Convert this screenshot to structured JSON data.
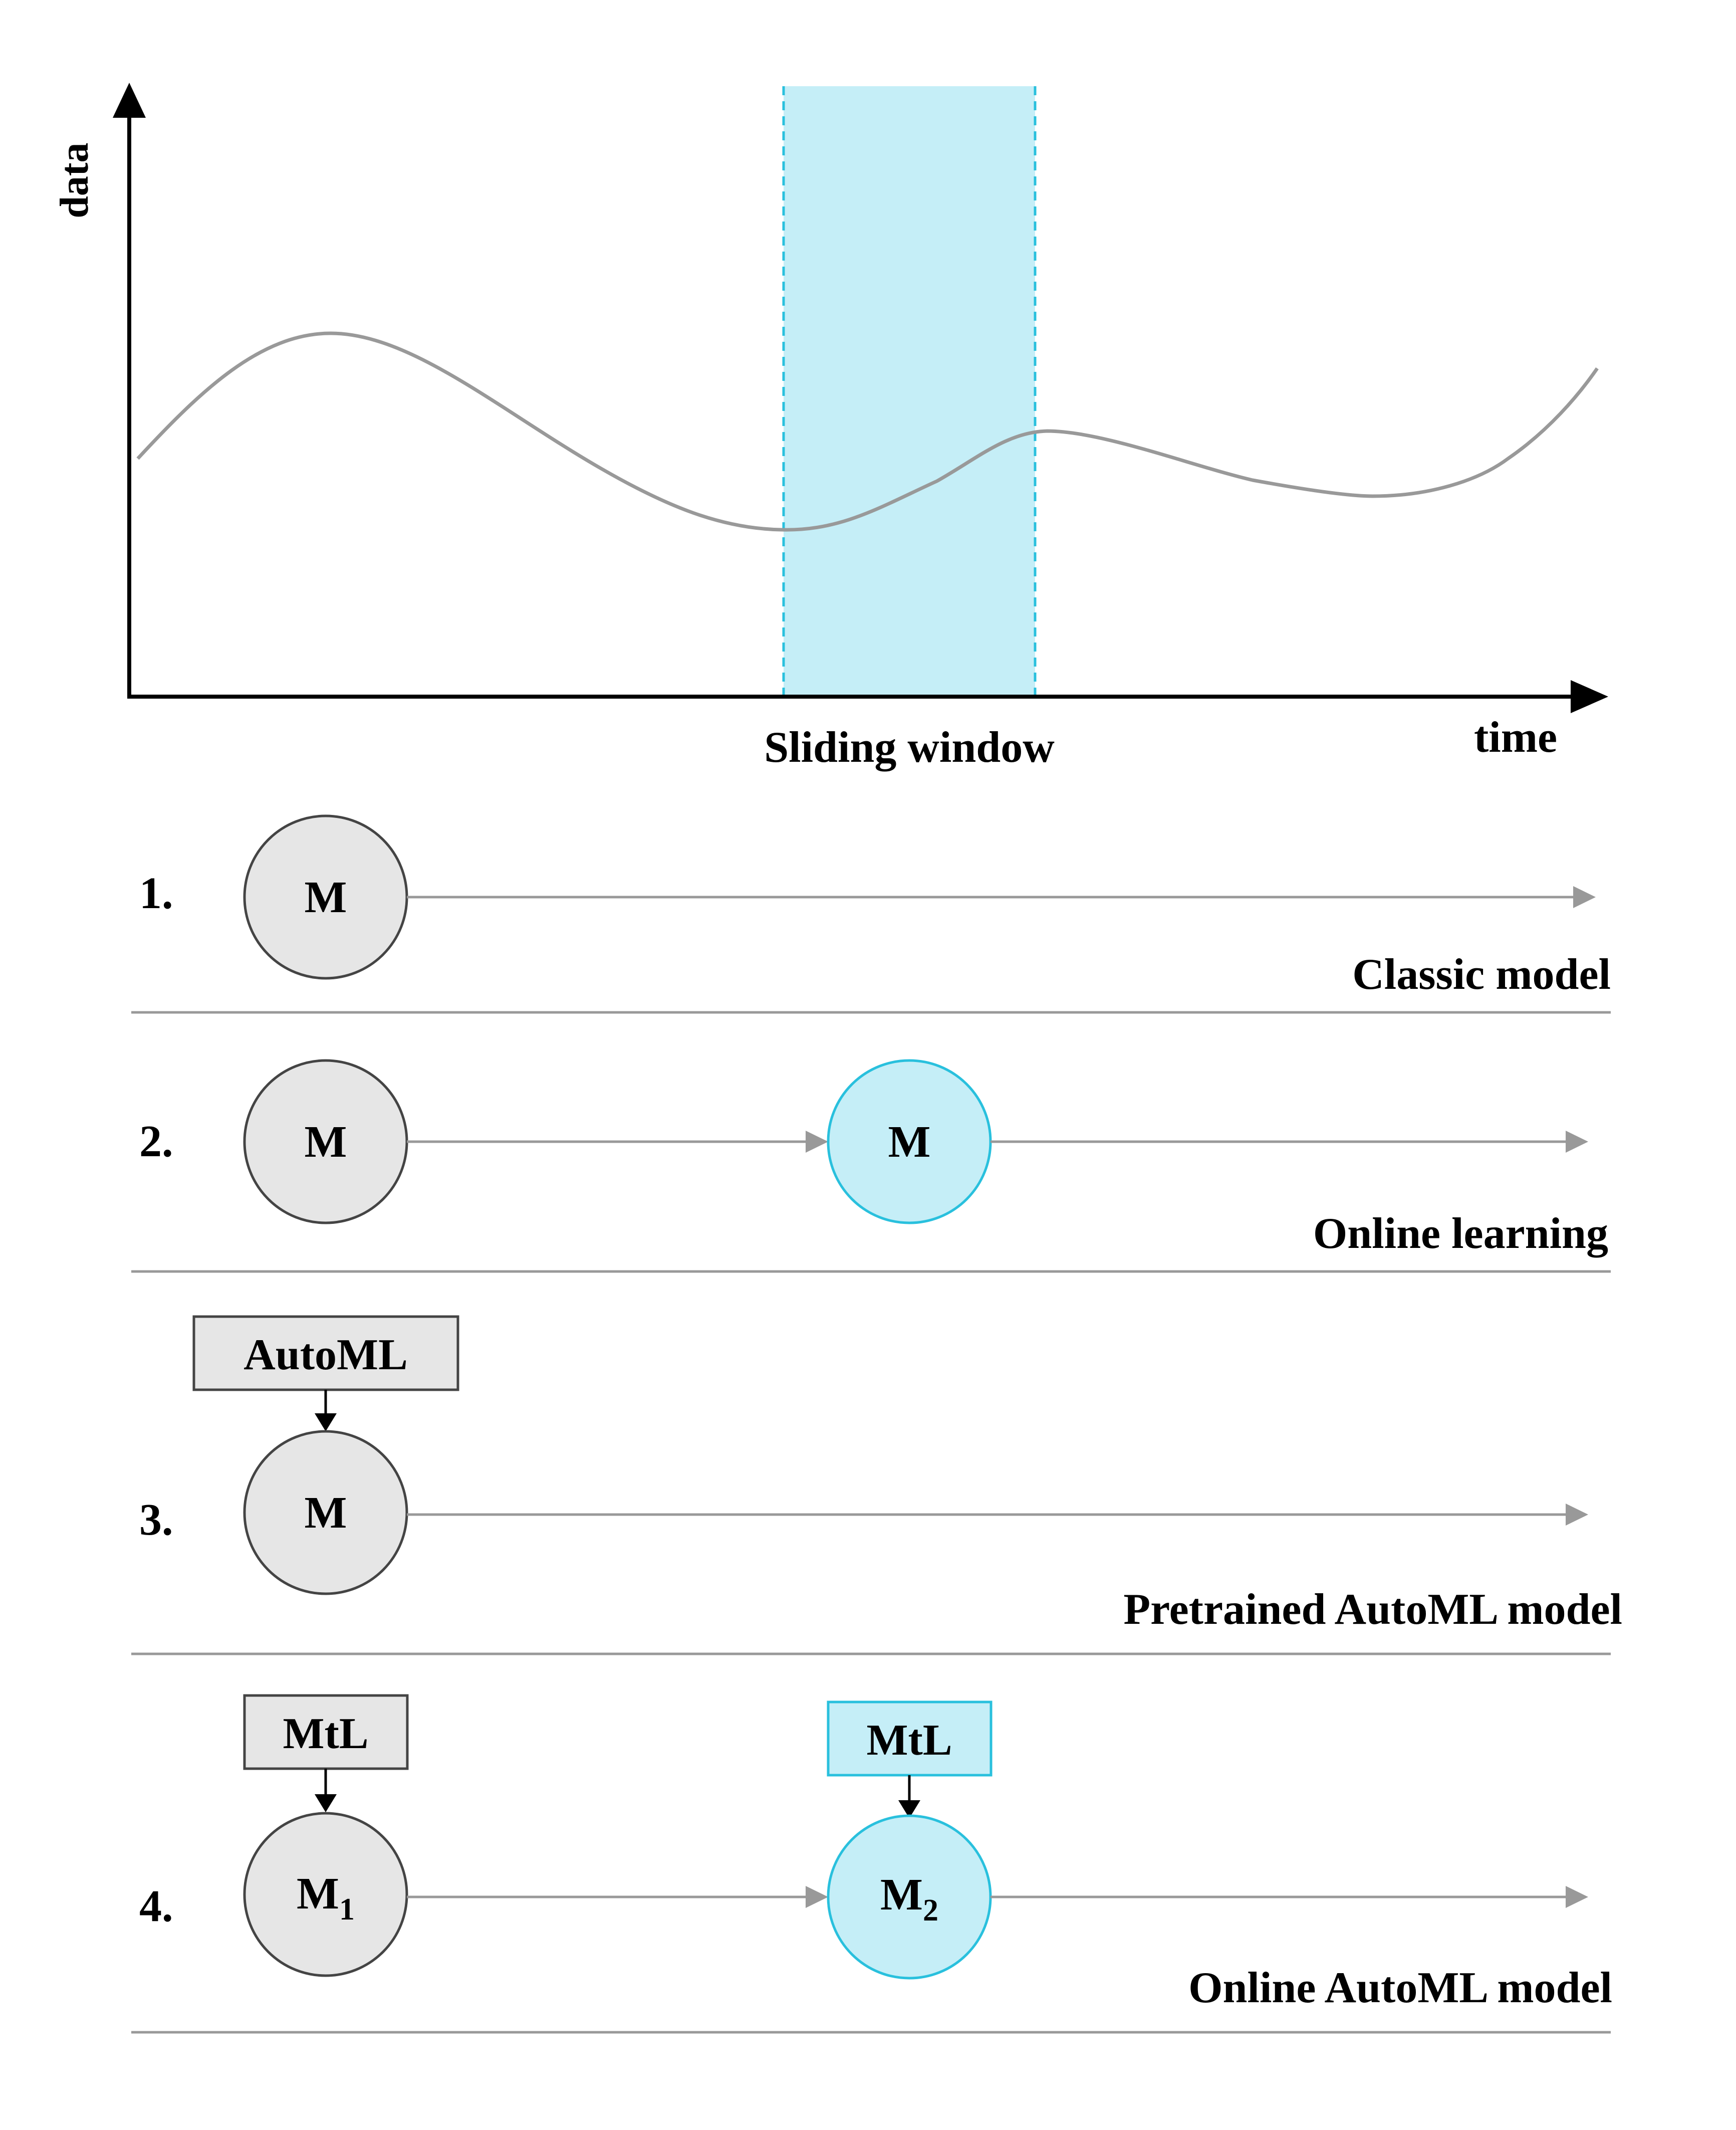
{
  "chart": {
    "ylabel": "data",
    "xlabel": "time",
    "window_label": "Sliding window"
  },
  "rows": [
    {
      "number": "1.",
      "caption": "Classic model",
      "node1": "M"
    },
    {
      "number": "2.",
      "caption": "Online learning",
      "node1": "M",
      "node2": "M"
    },
    {
      "number": "3.",
      "caption": "Pretrained AutoML model",
      "node1": "M",
      "box1": "AutoML"
    },
    {
      "number": "4.",
      "caption": "Online AutoML model",
      "node1_main": "M",
      "node1_sub": "1",
      "node2_main": "M",
      "node2_sub": "2",
      "box1": "MtL",
      "box2": "MtL"
    }
  ],
  "colors": {
    "accent": "#29c0dd",
    "accent_fill": "#c5eef7",
    "grey_node": "#e6e6e6",
    "grey_stroke": "#444444",
    "arrow_grey": "#999999",
    "curve": "#999999"
  }
}
